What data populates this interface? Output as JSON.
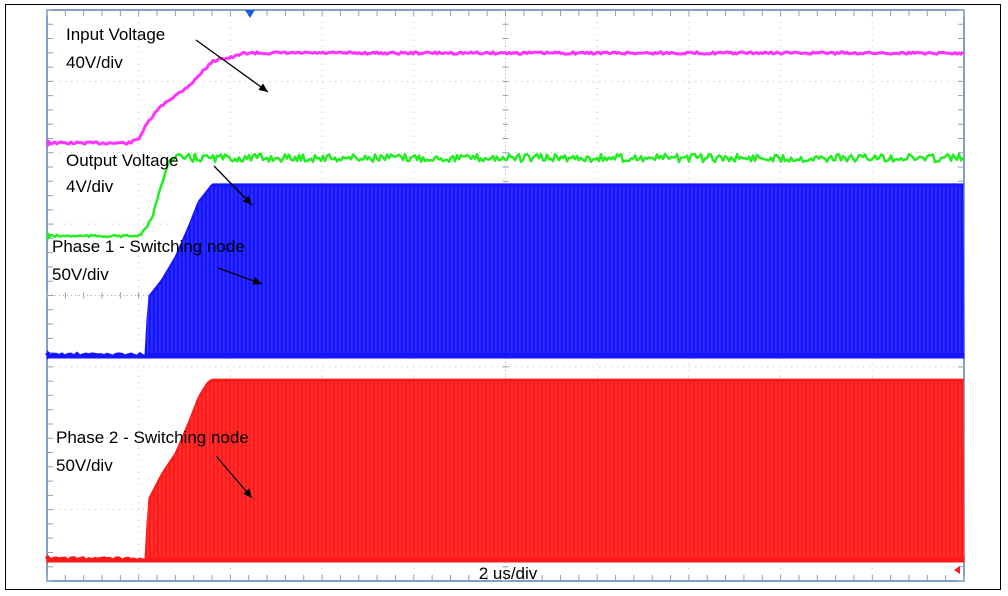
{
  "chart_data": {
    "type": "line",
    "title": "",
    "xlabel": "2 us/div",
    "ylabel": "",
    "x_unit": "us",
    "x_per_div": 2,
    "x_divisions": 10,
    "grid": true,
    "legend": "annotations",
    "annotations": [
      {
        "id": "input",
        "line1": "Input Voltage",
        "line2": "40V/div",
        "color": "#ff33ff"
      },
      {
        "id": "output",
        "line1": "Output Voltage",
        "line2": "4V/div",
        "color": "#22ee22"
      },
      {
        "id": "phase1",
        "line1": "Phase 1 - Switching node",
        "line2": "50V/div",
        "color": "#1515ff"
      },
      {
        "id": "phase2",
        "line1": "Phase 2 - Switching node",
        "line2": "50V/div",
        "color": "#ff1a1a"
      }
    ],
    "series": [
      {
        "id": "input",
        "color": "#ff33ff",
        "kind": "line",
        "x": [
          0,
          1.8,
          2.0,
          2.2,
          2.4,
          2.6,
          2.8,
          3.0,
          3.2,
          3.4,
          3.6,
          3.8,
          3.9,
          4.1,
          4.3,
          5.0,
          10.0
        ],
        "y": [
          0,
          0,
          0.1,
          0.45,
          0.72,
          0.92,
          1.05,
          1.2,
          1.37,
          1.6,
          1.8,
          1.9,
          1.87,
          1.92,
          2.0,
          2.0,
          2.0
        ]
      },
      {
        "id": "output",
        "color": "#22ee22",
        "kind": "line",
        "x": [
          0,
          2.0,
          2.15,
          2.3,
          2.5,
          2.65,
          2.8,
          10.0
        ],
        "y": [
          0,
          0,
          0.1,
          0.3,
          0.8,
          1.15,
          1.2,
          1.2
        ]
      },
      {
        "id": "phase1",
        "color": "#1515ff",
        "kind": "envelope",
        "x": [
          0,
          2.15,
          2.2,
          2.5,
          2.8,
          3.1,
          3.3,
          3.5,
          3.6,
          10.0
        ],
        "y": [
          0,
          0,
          1.0,
          1.3,
          1.7,
          2.25,
          2.65,
          2.85,
          2.95,
          2.95
        ]
      },
      {
        "id": "phase2",
        "color": "#ff1a1a",
        "kind": "envelope",
        "x": [
          0,
          2.15,
          2.2,
          2.5,
          2.8,
          3.1,
          3.3,
          3.5,
          3.6,
          10.0
        ],
        "y": [
          0,
          0,
          1.0,
          1.45,
          1.8,
          2.35,
          2.75,
          3.0,
          3.05,
          3.05
        ]
      }
    ]
  }
}
